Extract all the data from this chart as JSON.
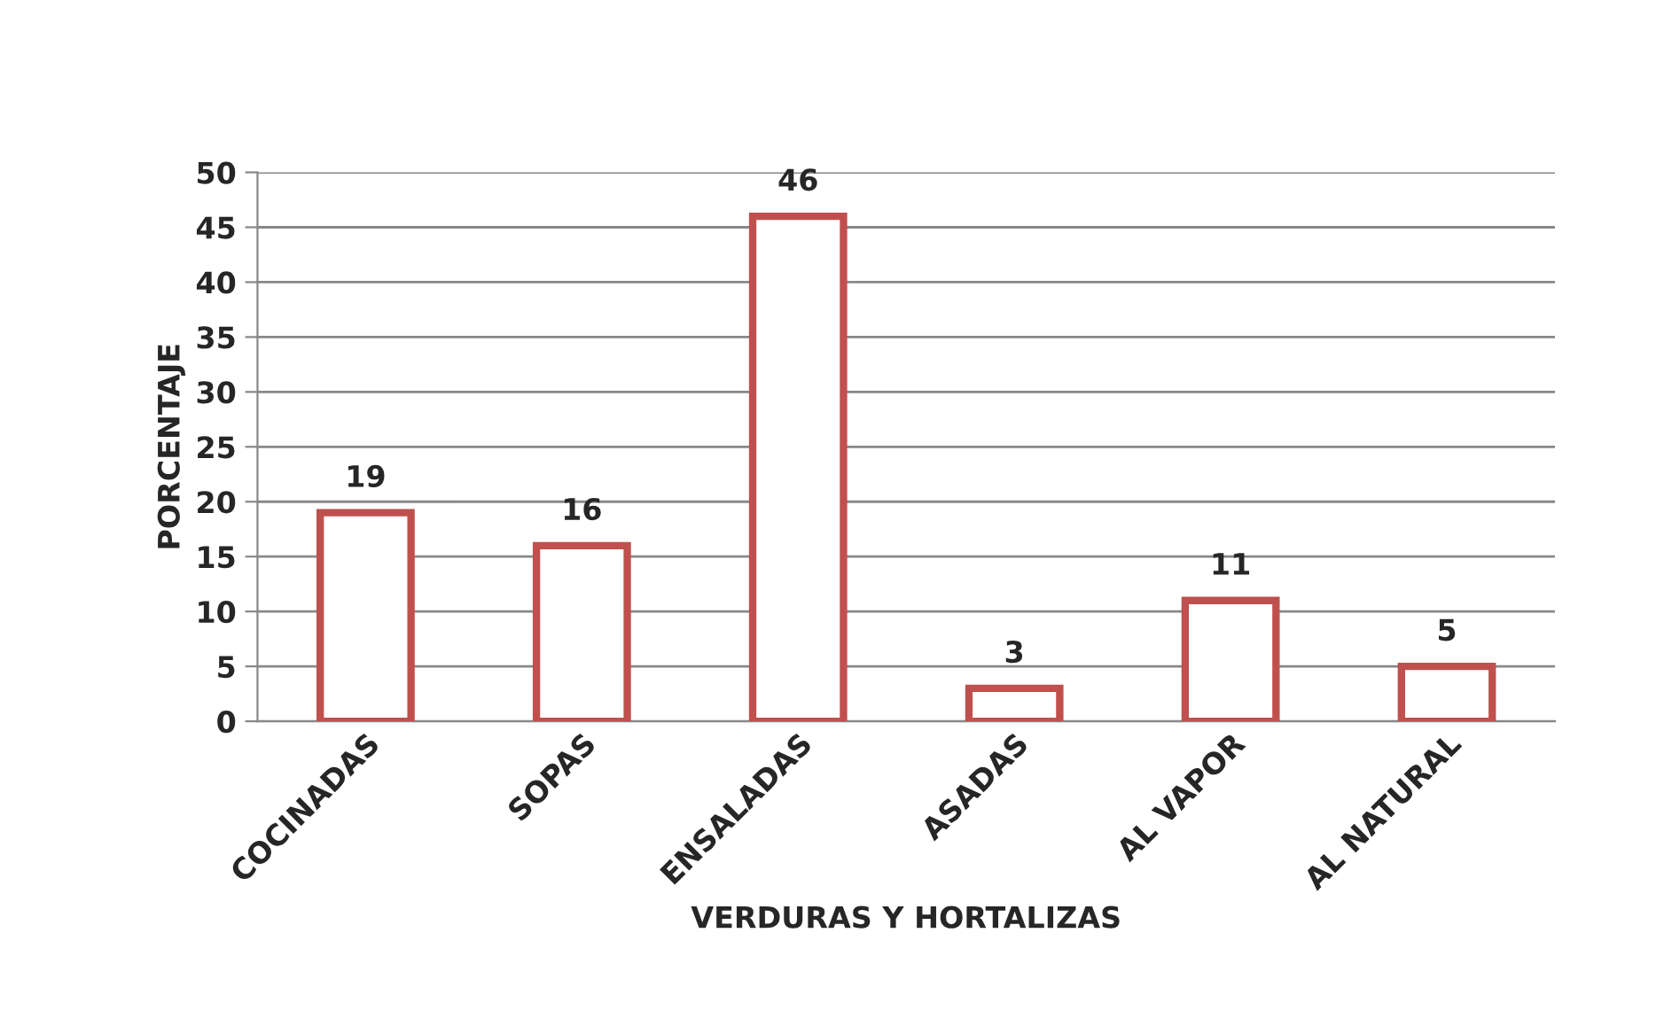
{
  "chart_data": {
    "type": "bar",
    "xlabel": "VERDURAS Y HORTALIZAS",
    "ylabel": "PORCENTAJE",
    "categories": [
      "COCINADAS",
      "SOPAS",
      "ENSALADAS",
      "ASADAS",
      "AL VAPOR",
      "AL NATURAL"
    ],
    "values": [
      19,
      16,
      46,
      3,
      11,
      5
    ],
    "color": "#c0504d",
    "ylim": [
      0,
      50
    ],
    "yticks": [
      0,
      5,
      10,
      15,
      20,
      25,
      30,
      35,
      40,
      45,
      50
    ],
    "grid": "y",
    "data_labels": true,
    "legend": false
  }
}
